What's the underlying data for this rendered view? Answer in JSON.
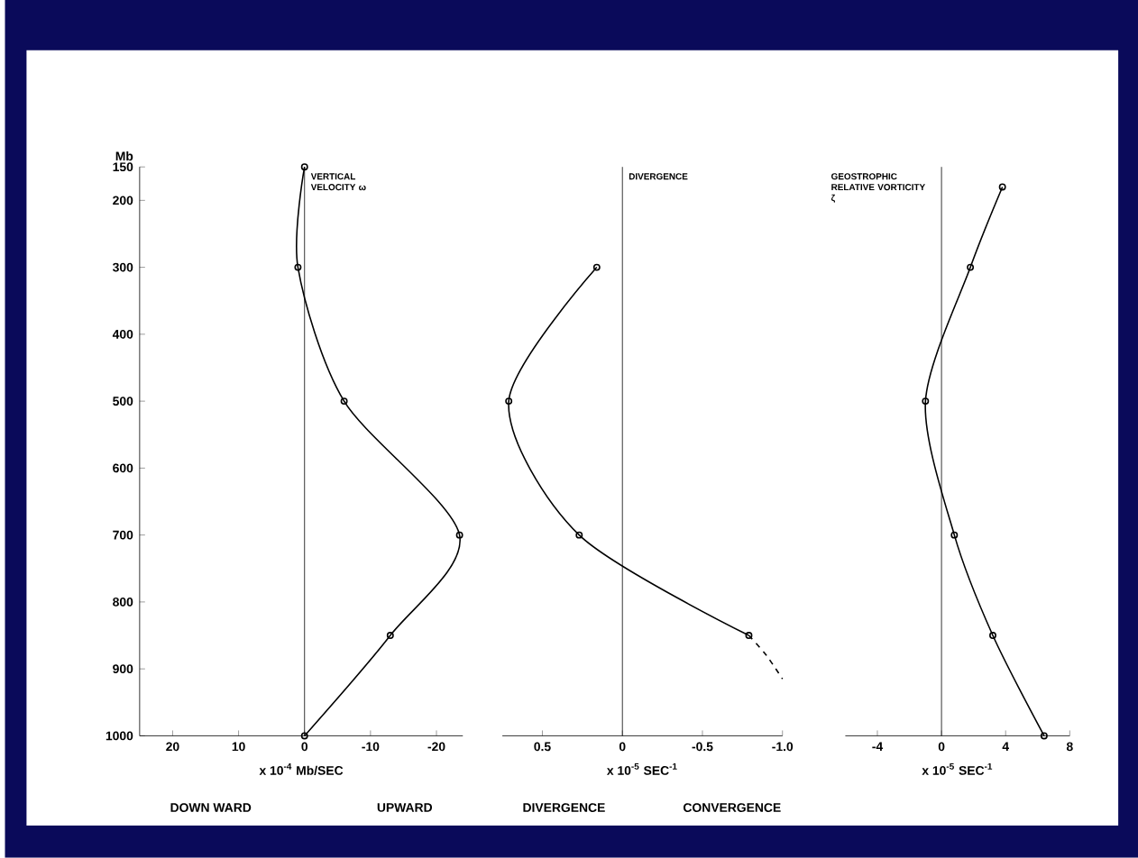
{
  "chart_data": [
    {
      "type": "line",
      "ylabel": "Mb",
      "xlabel": "x 10$^{-4}$ Mb/SEC",
      "annotations": [
        "VERTICAL VELOCITY ω",
        "DOWN WARD",
        "UPWARD"
      ],
      "series": [
        {
          "color": "#000000",
          "x": [
            0,
            1,
            -6,
            -23.5,
            -13,
            0
          ],
          "values": [
            150,
            300,
            500,
            700,
            850,
            1000
          ]
        }
      ],
      "xlim": [
        25,
        -24
      ],
      "xticks": [
        20,
        10,
        0,
        -10,
        -20
      ],
      "ylim": [
        1000,
        150
      ],
      "yticks": [
        150,
        200,
        300,
        400,
        500,
        600,
        700,
        800,
        900,
        1000
      ],
      "ref_lines": [
        {
          "axis": "x",
          "value": 0,
          "color": "#000000"
        }
      ],
      "marker": "circle",
      "line_style": "solid"
    },
    {
      "type": "line",
      "xlabel": "x 10$^{-5}$ SEC$^{-1}$",
      "annotations": [
        "DIVERGENCE",
        "DIVERGENCE",
        "CONVERGENCE"
      ],
      "series": [
        {
          "color": "#000000",
          "x": [
            0.16,
            0.71,
            0.27,
            -0.79
          ],
          "values": [
            300,
            500,
            700,
            850
          ],
          "marker": "circle",
          "line_style": "solid"
        },
        {
          "color": "#000000",
          "x": [
            -0.79,
            -0.9,
            -1.0
          ],
          "values": [
            850,
            880,
            915
          ],
          "marker": "none",
          "line_style": "dashed"
        }
      ],
      "xlim": [
        0.75,
        -1.0
      ],
      "xticks": [
        0.5,
        0,
        -0.5,
        {
          "value": -1,
          "label": "-1.0"
        }
      ],
      "ylim": [
        1000,
        150
      ],
      "tick_labels": "x",
      "ref_lines": [
        {
          "axis": "x",
          "value": 0,
          "color": "#000000"
        }
      ]
    },
    {
      "type": "line",
      "xlabel": "x 10$^{-5}$ SEC$^{-1}$",
      "annotations": [
        "GEOSTROPHIC RELATIVE VORTICITY ζ"
      ],
      "series": [
        {
          "color": "#000000",
          "x": [
            3.8,
            1.8,
            -1,
            0.8,
            3.2,
            6.4
          ],
          "values": [
            180,
            300,
            500,
            700,
            850,
            1000
          ]
        }
      ],
      "xlim": [
        -6,
        8
      ],
      "xticks": [
        -4,
        0,
        4,
        8
      ],
      "ylim": [
        1000,
        150
      ],
      "tick_labels": "x",
      "ref_lines": [
        {
          "axis": "x",
          "value": 0,
          "color": "#000000"
        }
      ],
      "marker": "circle",
      "line_style": "solid"
    }
  ]
}
